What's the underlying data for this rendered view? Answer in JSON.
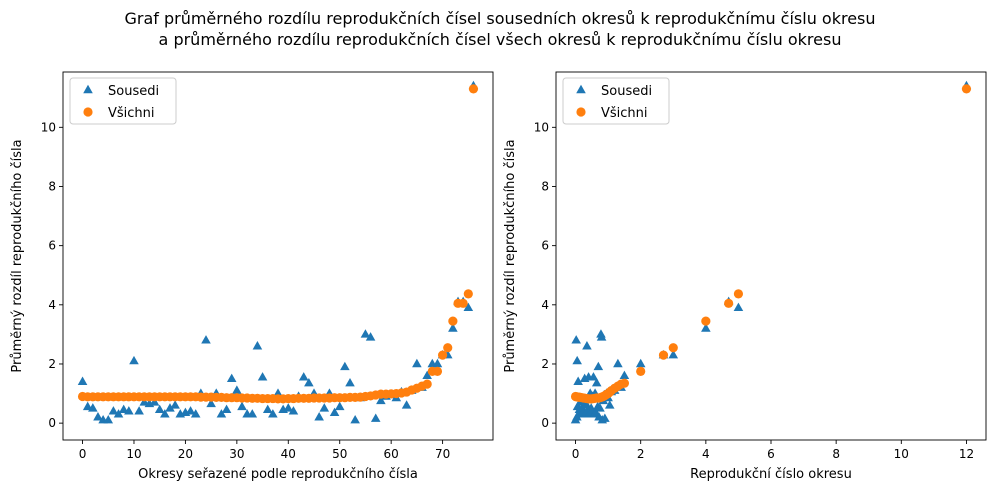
{
  "figure": {
    "title_line1": "Graf průměrného rozdílu reprodukčních čísel sousedních okresů k reprodukčnímu číslu okresu",
    "title_line2": "a průměrného rozdílu reprodukčních čísel všech okresů k reprodukčnímu číslu okresu"
  },
  "colors": {
    "sousedi": "#1f77b4",
    "vsichni": "#ff7f0e"
  },
  "chart_data": [
    {
      "type": "scatter",
      "xlabel": "Okresy seřazené podle reprodukčního čísla",
      "ylabel": "Průměrný rozdíl reprodukčního čísla",
      "xlim": [
        -3.8,
        79.8
      ],
      "ylim": [
        -0.57,
        11.87
      ],
      "xticks": [
        0,
        10,
        20,
        30,
        40,
        50,
        60,
        70
      ],
      "yticks": [
        0,
        2,
        4,
        6,
        8,
        10
      ],
      "grid": false,
      "legend": "top-left",
      "series": [
        {
          "name": "Sousedi",
          "marker": "triangle",
          "color": "#1f77b4",
          "x": [
            0,
            1,
            2,
            3,
            4,
            5,
            6,
            7,
            8,
            9,
            10,
            11,
            12,
            13,
            14,
            15,
            16,
            17,
            18,
            19,
            20,
            21,
            22,
            23,
            24,
            25,
            26,
            27,
            28,
            29,
            30,
            31,
            32,
            33,
            34,
            35,
            36,
            37,
            38,
            39,
            40,
            41,
            42,
            43,
            44,
            45,
            46,
            47,
            48,
            49,
            50,
            51,
            52,
            53,
            54,
            55,
            56,
            57,
            58,
            59,
            60,
            61,
            62,
            63,
            64,
            65,
            66,
            67,
            68,
            69,
            70,
            71,
            72,
            73,
            74,
            75,
            76
          ],
          "y": [
            1.4,
            0.55,
            0.5,
            0.2,
            0.1,
            0.1,
            0.4,
            0.3,
            0.45,
            0.4,
            2.1,
            0.4,
            0.7,
            0.65,
            0.7,
            0.45,
            0.3,
            0.5,
            0.6,
            0.3,
            0.35,
            0.4,
            0.3,
            1.0,
            2.8,
            0.65,
            1.0,
            0.3,
            0.45,
            1.5,
            1.1,
            0.55,
            0.3,
            0.3,
            2.6,
            1.55,
            0.45,
            0.3,
            1.0,
            0.45,
            0.5,
            0.4,
            0.9,
            1.55,
            1.35,
            1.0,
            0.2,
            0.5,
            1.0,
            0.35,
            0.55,
            1.9,
            1.35,
            0.1,
            0.85,
            3.0,
            2.9,
            0.15,
            0.75,
            0.9,
            0.95,
            0.85,
            1.05,
            0.6,
            1.1,
            2.0,
            1.2,
            1.6,
            2.0,
            2.0,
            2.3,
            2.3,
            3.2,
            4.1,
            4.1,
            3.9,
            11.4
          ]
        },
        {
          "name": "Všichni",
          "marker": "circle",
          "color": "#ff7f0e",
          "x": [
            0,
            1,
            2,
            3,
            4,
            5,
            6,
            7,
            8,
            9,
            10,
            11,
            12,
            13,
            14,
            15,
            16,
            17,
            18,
            19,
            20,
            21,
            22,
            23,
            24,
            25,
            26,
            27,
            28,
            29,
            30,
            31,
            32,
            33,
            34,
            35,
            36,
            37,
            38,
            39,
            40,
            41,
            42,
            43,
            44,
            45,
            46,
            47,
            48,
            49,
            50,
            51,
            52,
            53,
            54,
            55,
            56,
            57,
            58,
            59,
            60,
            61,
            62,
            63,
            64,
            65,
            66,
            67,
            68,
            69,
            70,
            71,
            72,
            73,
            74,
            75,
            76
          ],
          "y": [
            0.9,
            0.89,
            0.89,
            0.89,
            0.89,
            0.89,
            0.89,
            0.89,
            0.89,
            0.89,
            0.89,
            0.89,
            0.89,
            0.89,
            0.89,
            0.89,
            0.89,
            0.89,
            0.89,
            0.89,
            0.89,
            0.89,
            0.89,
            0.88,
            0.88,
            0.88,
            0.87,
            0.87,
            0.86,
            0.86,
            0.86,
            0.85,
            0.85,
            0.84,
            0.84,
            0.83,
            0.83,
            0.83,
            0.82,
            0.82,
            0.83,
            0.83,
            0.84,
            0.84,
            0.84,
            0.85,
            0.85,
            0.85,
            0.85,
            0.86,
            0.86,
            0.86,
            0.87,
            0.87,
            0.88,
            0.9,
            0.92,
            0.95,
            0.98,
            0.98,
            0.99,
            1.0,
            1.02,
            1.05,
            1.12,
            1.18,
            1.25,
            1.32,
            1.75,
            1.75,
            2.3,
            2.55,
            3.45,
            4.05,
            4.05,
            4.37,
            11.3
          ]
        }
      ]
    },
    {
      "type": "scatter",
      "xlabel": "Reprodukční číslo okresu",
      "ylabel": "Průměrný rozdíl reprodukčního čísla",
      "xlim": [
        -0.6,
        12.6
      ],
      "ylim": [
        -0.57,
        11.87
      ],
      "xticks": [
        0,
        2,
        4,
        6,
        8,
        10,
        12
      ],
      "yticks": [
        0,
        2,
        4,
        6,
        8,
        10
      ],
      "grid": false,
      "legend": "top-left",
      "series": [
        {
          "name": "Sousedi",
          "marker": "triangle",
          "color": "#1f77b4",
          "x": [
            0.0,
            0.02,
            0.04,
            0.05,
            0.06,
            0.08,
            0.1,
            0.12,
            0.15,
            0.18,
            0.2,
            0.22,
            0.25,
            0.28,
            0.3,
            0.32,
            0.35,
            0.38,
            0.4,
            0.42,
            0.45,
            0.48,
            0.5,
            0.52,
            0.55,
            0.58,
            0.6,
            0.62,
            0.65,
            0.68,
            0.7,
            0.72,
            0.75,
            0.78,
            0.8,
            0.82,
            0.85,
            0.88,
            0.9,
            0.95,
            1.0,
            1.05,
            1.1,
            1.2,
            1.3,
            1.4,
            1.5,
            2.0,
            2.7,
            3.0,
            4.0,
            4.7,
            5.0,
            12.0
          ],
          "y": [
            0.1,
            2.8,
            0.2,
            2.1,
            0.55,
            1.4,
            0.3,
            0.45,
            0.7,
            0.4,
            0.5,
            0.35,
            0.6,
            1.5,
            0.3,
            0.65,
            2.6,
            0.45,
            1.55,
            0.3,
            1.0,
            0.5,
            0.4,
            0.9,
            1.55,
            0.3,
            1.0,
            0.35,
            1.35,
            0.55,
            1.9,
            0.2,
            0.5,
            3.0,
            2.9,
            0.1,
            0.75,
            0.95,
            0.15,
            1.0,
            0.85,
            0.6,
            1.05,
            1.1,
            2.0,
            1.2,
            1.6,
            2.0,
            2.3,
            2.3,
            3.2,
            4.1,
            3.9,
            11.4
          ]
        },
        {
          "name": "Všichni",
          "marker": "circle",
          "color": "#ff7f0e",
          "x": [
            0.0,
            0.02,
            0.05,
            0.08,
            0.1,
            0.15,
            0.2,
            0.25,
            0.3,
            0.35,
            0.4,
            0.45,
            0.5,
            0.55,
            0.6,
            0.65,
            0.7,
            0.75,
            0.8,
            0.85,
            0.9,
            0.95,
            1.0,
            1.05,
            1.1,
            1.2,
            1.3,
            1.4,
            1.5,
            2.0,
            2.7,
            3.0,
            4.0,
            4.7,
            5.0,
            12.0
          ],
          "y": [
            0.9,
            0.89,
            0.89,
            0.88,
            0.88,
            0.87,
            0.86,
            0.85,
            0.84,
            0.83,
            0.82,
            0.82,
            0.82,
            0.83,
            0.84,
            0.85,
            0.85,
            0.86,
            0.88,
            0.9,
            0.93,
            0.97,
            1.0,
            1.05,
            1.1,
            1.18,
            1.25,
            1.32,
            1.35,
            1.75,
            2.3,
            2.55,
            3.45,
            4.05,
            4.37,
            11.3
          ]
        }
      ]
    }
  ]
}
